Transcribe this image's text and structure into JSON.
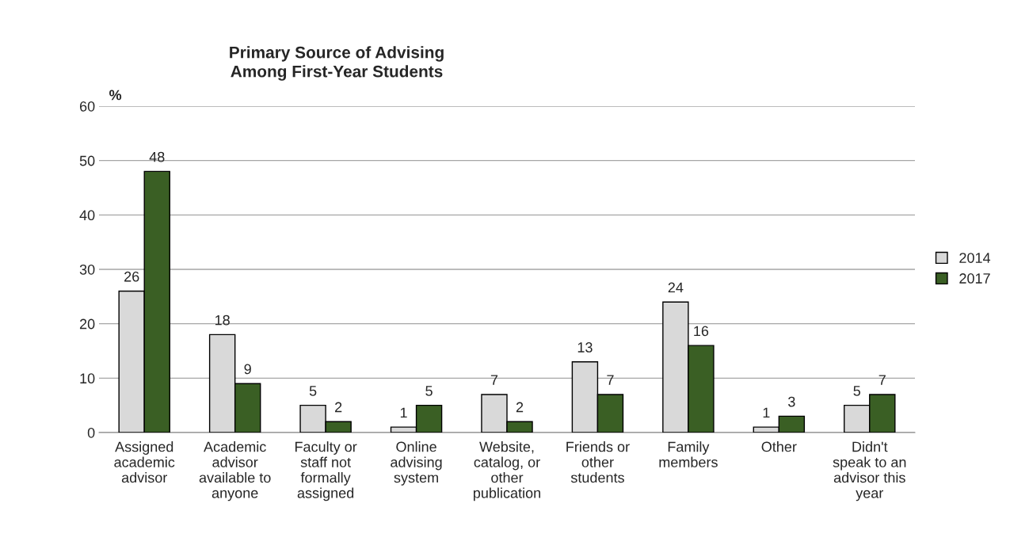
{
  "chart_data": {
    "type": "bar",
    "title": "Primary Source of Advising\nAmong First-Year Students",
    "ylabel": "%",
    "categories": [
      "Assigned\nacademic\nadvisor",
      "Academic\nadvisor\navailable to\nanyone",
      "Faculty or\nstaff not\nformally\nassigned",
      "Online\nadvising\nsystem",
      "Website,\ncatalog, or\nother\npublication",
      "Friends or\nother\nstudents",
      "Family\nmembers",
      "Other",
      "Didn't\nspeak to an\nadvisor this\nyear"
    ],
    "series": [
      {
        "name": "2014",
        "color": "#d9d9d9",
        "values": [
          26,
          18,
          5,
          1,
          7,
          13,
          24,
          1,
          5
        ]
      },
      {
        "name": "2017",
        "color": "#3a5f24",
        "values": [
          48,
          9,
          2,
          5,
          2,
          7,
          16,
          3,
          7
        ]
      }
    ],
    "ylim": [
      0,
      60
    ],
    "yticks": [
      0,
      10,
      20,
      30,
      40,
      50,
      60
    ],
    "grid": "y",
    "legend": "right",
    "data_labels": true
  }
}
